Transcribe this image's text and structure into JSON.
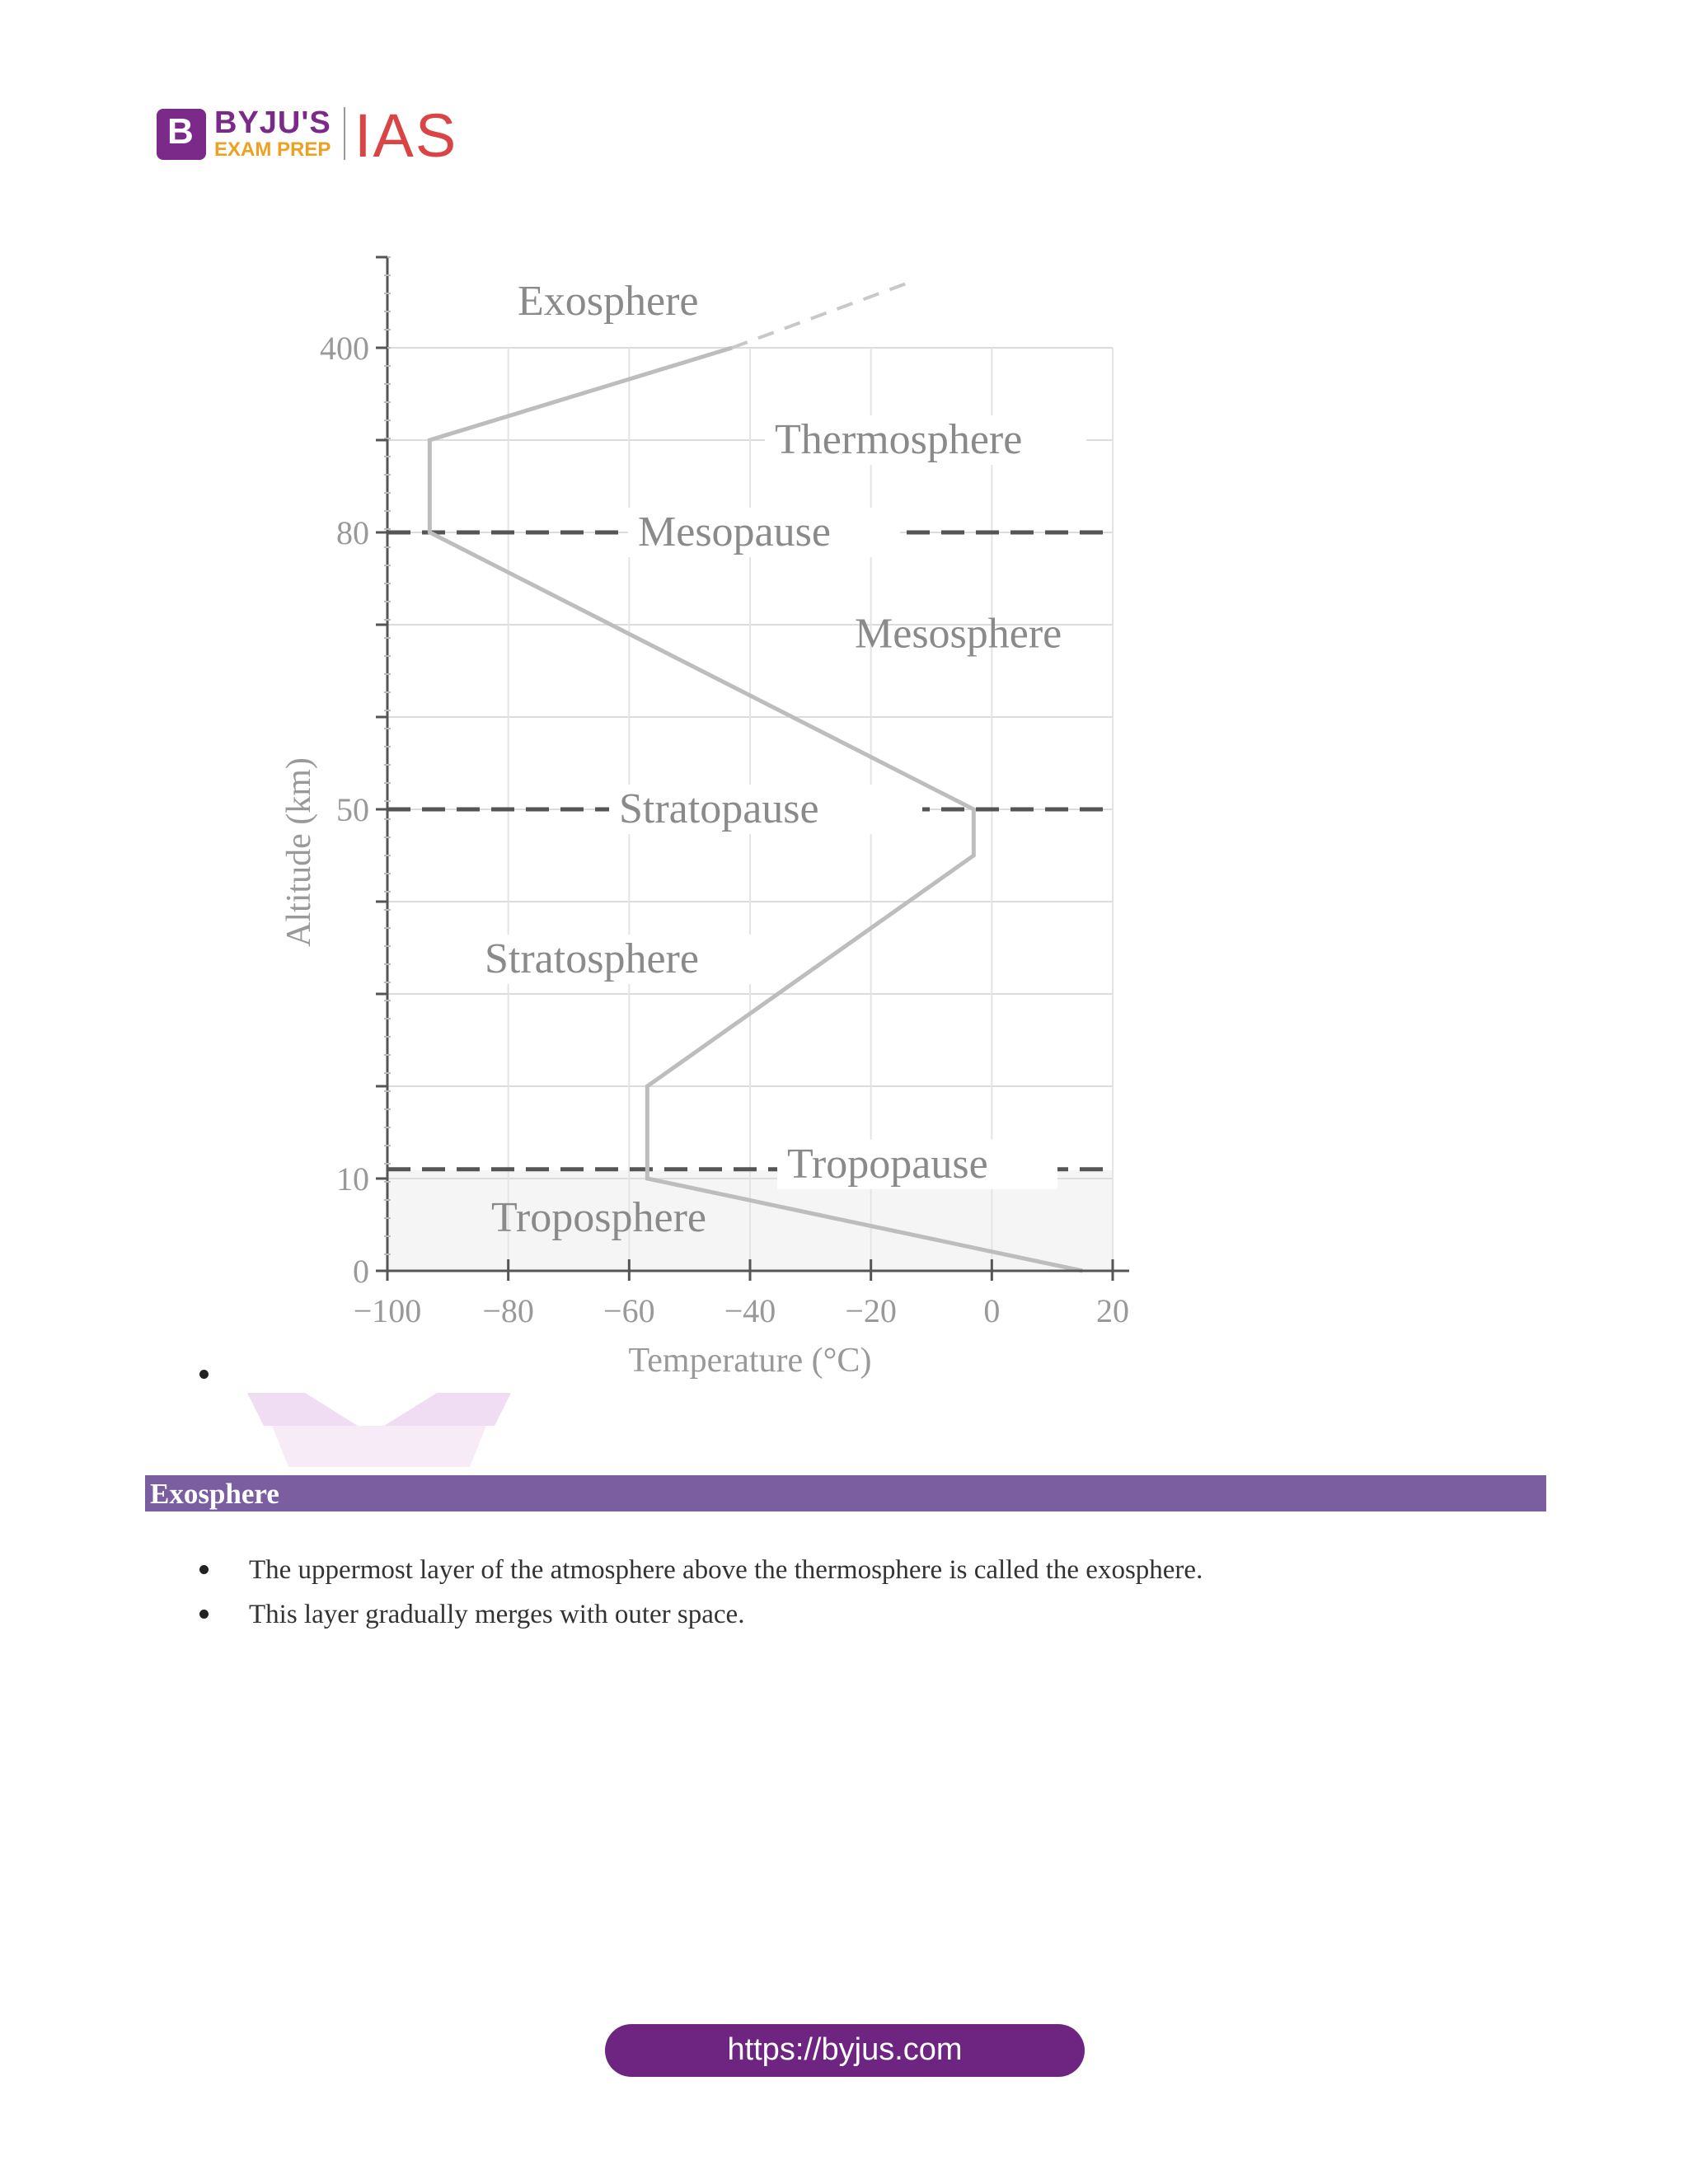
{
  "brand": {
    "logo_letter": "B",
    "logo_name": "BYJU'S",
    "logo_sub": "EXAM PREP",
    "logo_ias": "IAS",
    "colors": {
      "purple": "#7b2a8a",
      "orange": "#f0a020",
      "red": "#d94545"
    }
  },
  "chart_data": {
    "type": "line",
    "title": "",
    "xlabel": "Temperature (°C)",
    "ylabel": "Altitude (km)",
    "xlim": [
      -100,
      20
    ],
    "x_ticks": [
      "−100",
      "−80",
      "−60",
      "−40",
      "−20",
      "0",
      "20"
    ],
    "y_ticks": [
      "0",
      "10",
      "50",
      "80",
      "400"
    ],
    "series": [
      {
        "x": [
          15,
          -57,
          -57,
          -3,
          -3,
          -93,
          -93,
          -43
        ],
        "y": [
          0,
          10,
          20,
          45,
          50,
          80,
          90,
          100
        ]
      }
    ],
    "extension_dashed": {
      "x": [
        -43,
        -14
      ],
      "y": [
        100,
        107
      ]
    },
    "layer_labels": [
      "Exosphere",
      "Thermosphere",
      "Mesosphere",
      "Stratosphere",
      "Troposphere"
    ],
    "boundary_labels": [
      "Mesopause",
      "Stratopause",
      "Tropopause"
    ],
    "grid": true
  },
  "section": {
    "heading": "Exosphere",
    "points": [
      "The uppermost layer of the atmosphere above the thermosphere is called the exosphere.",
      "This layer gradually merges with outer space."
    ]
  },
  "footer": {
    "url": "https://byjus.com"
  }
}
